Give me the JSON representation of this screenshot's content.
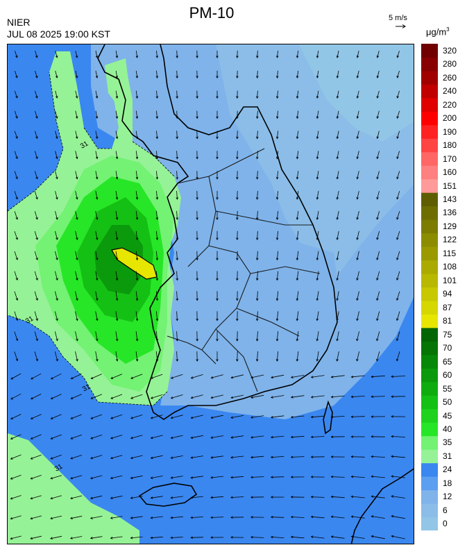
{
  "header": {
    "title": "PM-10",
    "org": "NIER",
    "datetime": "JUL 08 2025 19:00 KST"
  },
  "wind_reference": {
    "label": "5 m/s"
  },
  "legend": {
    "unit": "μg/m",
    "unit_sup": "3",
    "bins": [
      {
        "label": "0",
        "color": "#92c6e7"
      },
      {
        "label": "6",
        "color": "#8bbde8"
      },
      {
        "label": "12",
        "color": "#7fb3ea"
      },
      {
        "label": "18",
        "color": "#5c9ff0"
      },
      {
        "label": "24",
        "color": "#3a87f0"
      },
      {
        "label": "31",
        "color": "#96f296"
      },
      {
        "label": "35",
        "color": "#73f273"
      },
      {
        "label": "40",
        "color": "#27e627"
      },
      {
        "label": "45",
        "color": "#1ed21e"
      },
      {
        "label": "50",
        "color": "#14c014"
      },
      {
        "label": "55",
        "color": "#0fac0f"
      },
      {
        "label": "60",
        "color": "#0b9a0b"
      },
      {
        "label": "65",
        "color": "#088808"
      },
      {
        "label": "70",
        "color": "#067506"
      },
      {
        "label": "75",
        "color": "#046504"
      },
      {
        "label": "81",
        "color": "#e6e600"
      },
      {
        "label": "87",
        "color": "#d6d600"
      },
      {
        "label": "94",
        "color": "#c8c800"
      },
      {
        "label": "101",
        "color": "#b8b800"
      },
      {
        "label": "108",
        "color": "#aaaa00"
      },
      {
        "label": "115",
        "color": "#9a9a00"
      },
      {
        "label": "122",
        "color": "#8c8c00"
      },
      {
        "label": "129",
        "color": "#7c7c00"
      },
      {
        "label": "136",
        "color": "#6e6e00"
      },
      {
        "label": "143",
        "color": "#5e5e00"
      },
      {
        "label": "151",
        "color": "#ff9a9a"
      },
      {
        "label": "160",
        "color": "#ff8080"
      },
      {
        "label": "170",
        "color": "#ff6666"
      },
      {
        "label": "180",
        "color": "#ff4444"
      },
      {
        "label": "190",
        "color": "#ff2222"
      },
      {
        "label": "200",
        "color": "#ff0000"
      },
      {
        "label": "220",
        "color": "#e00000"
      },
      {
        "label": "240",
        "color": "#c00000"
      },
      {
        "label": "260",
        "color": "#a00000"
      },
      {
        "label": "280",
        "color": "#880000"
      },
      {
        "label": "320",
        "color": "#700000"
      }
    ]
  },
  "map": {
    "background_color": "#3a87f0",
    "contour_labels": [
      "31",
      "31",
      "31",
      "31"
    ]
  }
}
